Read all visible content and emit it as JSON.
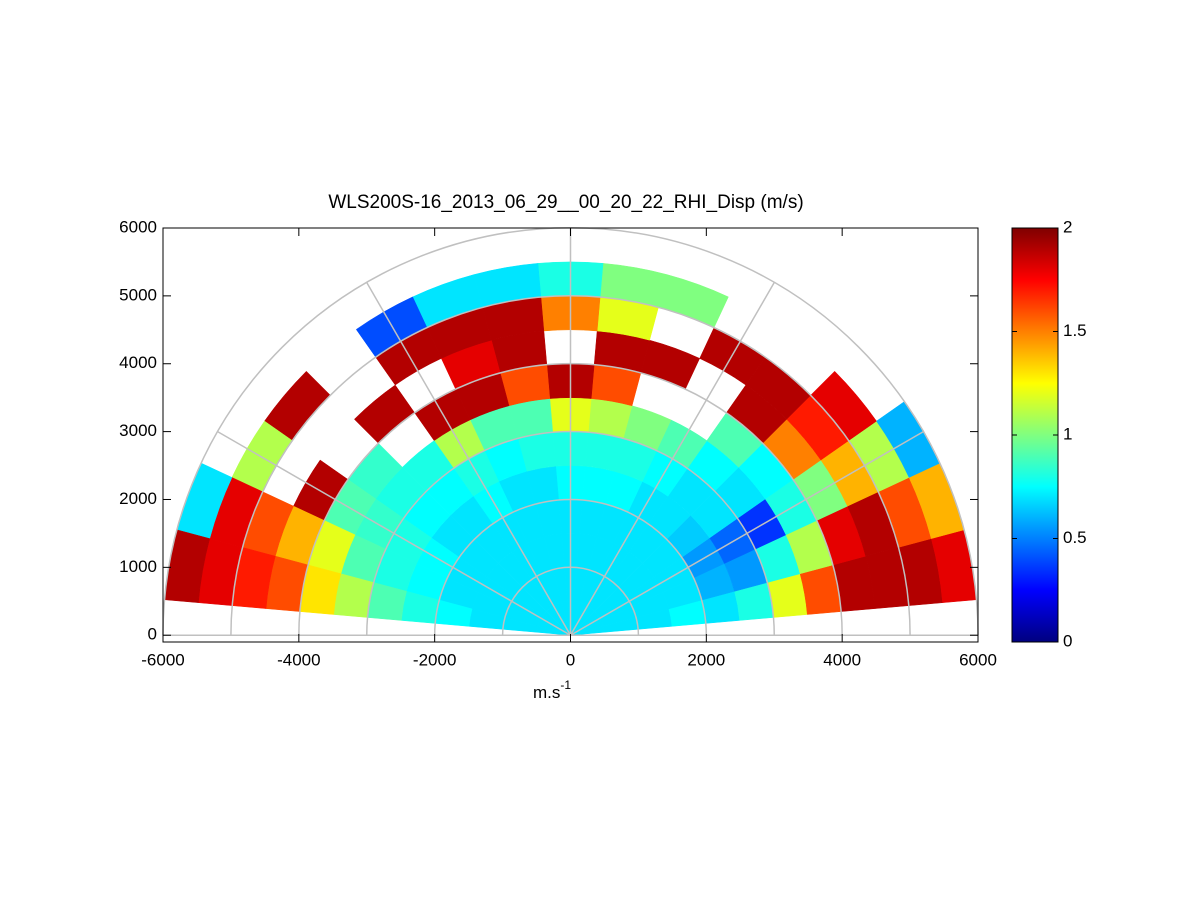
{
  "chart_data": {
    "type": "polar-heatmap",
    "title": "WLS200S-16_2013_06_29__00_20_22_RHI_Disp (m/s)",
    "xlabel": {
      "base": "m.s",
      "sup": "-1"
    },
    "xlim": [
      -6000,
      6000
    ],
    "ylim": [
      -100,
      6000
    ],
    "xticks": [
      -6000,
      -4000,
      -2000,
      0,
      2000,
      4000,
      6000
    ],
    "yticks": [
      0,
      1000,
      2000,
      3000,
      4000,
      5000,
      6000
    ],
    "rgrid": [
      1000,
      2000,
      3000,
      4000,
      5000,
      6000
    ],
    "thetagrid": [
      0,
      30,
      60,
      90,
      120,
      150,
      180
    ],
    "theta_edges": [
      5,
      15,
      25,
      35,
      45,
      55,
      65,
      75,
      85,
      95,
      105,
      115,
      125,
      135,
      145,
      155,
      165,
      175
    ],
    "r_edges": [
      0,
      500,
      1000,
      1500,
      2000,
      2500,
      3000,
      3500,
      4000,
      4500,
      5000,
      5500,
      6000
    ],
    "values": [
      [
        0.7,
        0.7,
        0.7,
        0.75,
        0.7,
        0.8,
        1.2,
        1.6,
        1.9,
        1.9,
        1.9,
        1.8
      ],
      [
        0.7,
        0.7,
        0.7,
        0.7,
        0.6,
        0.55,
        0.8,
        1.1,
        1.8,
        1.9,
        1.6,
        1.4
      ],
      [
        0.7,
        0.7,
        0.7,
        0.7,
        0.55,
        0.45,
        0.35,
        0.8,
        1.0,
        1.4,
        1.1,
        0.6
      ],
      [
        0.7,
        0.7,
        0.7,
        0.7,
        0.65,
        0.7,
        0.7,
        0.75,
        1.5,
        1.7,
        1.8,
        null
      ],
      [
        0.7,
        0.7,
        0.7,
        0.7,
        0.7,
        0.7,
        0.75,
        0.9,
        1.9,
        1.9,
        null,
        null
      ],
      [
        0.7,
        0.7,
        0.7,
        0.7,
        0.7,
        0.75,
        0.9,
        null,
        null,
        1.9,
        null,
        null
      ],
      [
        0.7,
        0.7,
        0.7,
        0.7,
        0.75,
        0.8,
        1.0,
        null,
        1.9,
        null,
        1.0,
        null
      ],
      [
        0.7,
        0.7,
        0.7,
        0.7,
        0.75,
        0.8,
        1.1,
        1.6,
        1.9,
        1.2,
        1.0,
        null
      ],
      [
        0.7,
        0.7,
        0.7,
        0.7,
        0.75,
        0.8,
        1.2,
        1.9,
        null,
        1.5,
        0.8,
        null
      ],
      [
        0.7,
        0.7,
        0.7,
        0.7,
        0.7,
        0.8,
        0.9,
        1.6,
        1.9,
        1.9,
        0.7,
        null
      ],
      [
        0.7,
        0.7,
        0.7,
        0.7,
        0.7,
        0.75,
        0.9,
        1.9,
        1.8,
        1.9,
        0.7,
        null
      ],
      [
        0.7,
        0.7,
        0.7,
        0.7,
        0.75,
        0.8,
        1.1,
        1.9,
        null,
        1.9,
        0.4,
        null
      ],
      [
        0.7,
        0.7,
        0.7,
        0.7,
        0.7,
        0.75,
        0.8,
        null,
        1.9,
        null,
        null,
        null
      ],
      [
        0.7,
        0.7,
        0.7,
        0.7,
        0.7,
        0.75,
        0.8,
        0.85,
        null,
        null,
        1.9,
        null
      ],
      [
        0.7,
        0.7,
        0.7,
        0.7,
        0.75,
        0.8,
        0.85,
        0.9,
        1.9,
        null,
        1.1,
        null
      ],
      [
        0.7,
        0.7,
        0.7,
        0.7,
        0.75,
        0.8,
        0.9,
        1.2,
        1.4,
        1.6,
        1.8,
        0.7
      ],
      [
        0.7,
        0.7,
        0.7,
        0.75,
        0.8,
        0.9,
        1.1,
        1.3,
        1.6,
        1.7,
        1.8,
        1.9
      ]
    ],
    "colormap": "jet",
    "clim": [
      0,
      2
    ],
    "cticks": [
      0,
      0.5,
      1,
      1.5,
      2
    ]
  }
}
